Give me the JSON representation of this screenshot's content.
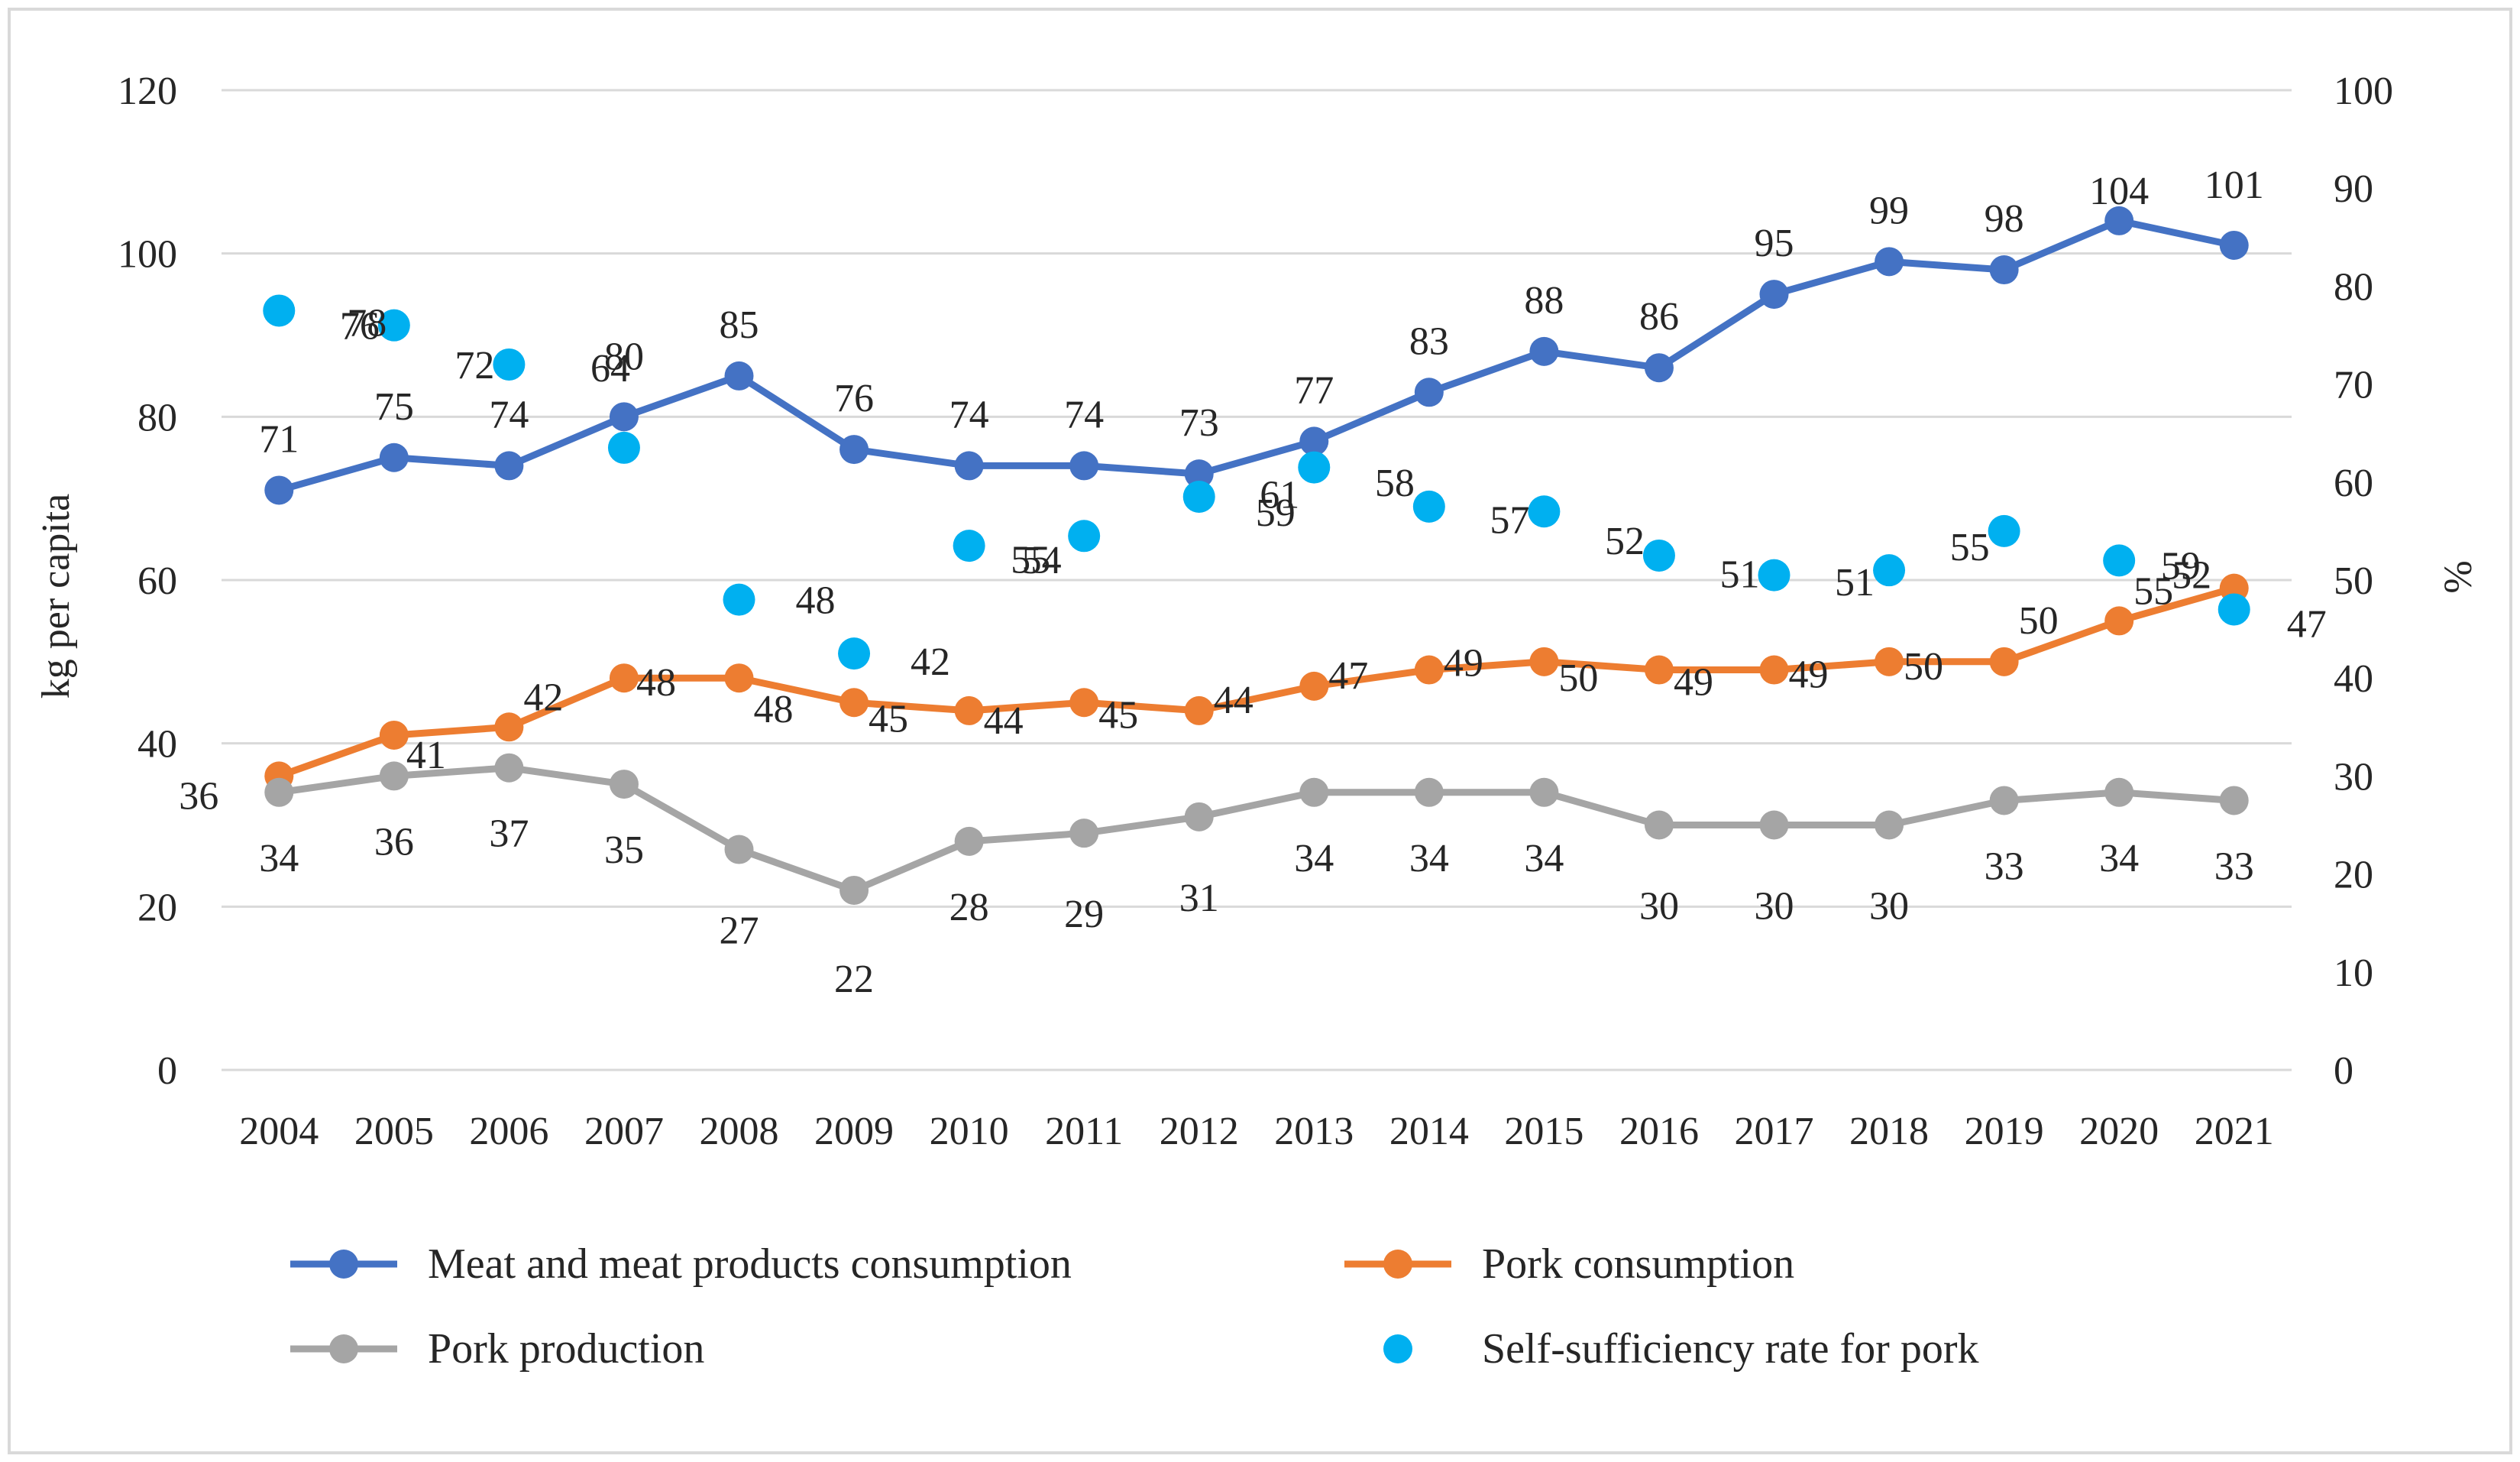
{
  "chart_data": {
    "type": "line",
    "title": "",
    "categories": [
      "2004",
      "2005",
      "2006",
      "2007",
      "2008",
      "2009",
      "2010",
      "2011",
      "2012",
      "2013",
      "2014",
      "2015",
      "2016",
      "2017",
      "2018",
      "2019",
      "2020",
      "2021"
    ],
    "y_left": {
      "label": "kg per capita",
      "min": 0,
      "max": 120,
      "ticks": [
        "0",
        "20",
        "40",
        "60",
        "80",
        "100",
        "120"
      ]
    },
    "y_right": {
      "label": "%",
      "min": 0,
      "max": 100,
      "ticks": [
        "0",
        "10",
        "20",
        "30",
        "40",
        "50",
        "60",
        "70",
        "80",
        "90",
        "100"
      ]
    },
    "grid": true,
    "legend_position": "bottom",
    "series": [
      {
        "name": "Meat and meat products consumption",
        "axis": "left",
        "style": "line-marker",
        "color": "#4472c4",
        "values": [
          71,
          75,
          74,
          80,
          85,
          76,
          74,
          74,
          73,
          77,
          83,
          88,
          86,
          95,
          99,
          98,
          104,
          101
        ],
        "labels": [
          "71",
          "75",
          "74",
          "80",
          "85",
          "76",
          "74",
          "74",
          "73",
          "77",
          "83",
          "88",
          "86",
          "95",
          "99",
          "98",
          "104",
          "101"
        ]
      },
      {
        "name": "Pork consumption",
        "axis": "left",
        "style": "line-marker",
        "color": "#ed7d31",
        "values": [
          36,
          41,
          42,
          48,
          48,
          45,
          44,
          45,
          44,
          47,
          49,
          50,
          49,
          49,
          50,
          50,
          55,
          59
        ],
        "labels": [
          "36",
          "41",
          "42",
          "48",
          "48",
          "45",
          "44",
          "45",
          "44",
          "47",
          "49",
          "50",
          "49",
          "49",
          "50",
          "50",
          "55",
          "59"
        ]
      },
      {
        "name": "Pork production",
        "axis": "left",
        "style": "line-marker",
        "color": "#a5a5a5",
        "values": [
          34,
          36,
          37,
          35,
          27,
          22,
          28,
          29,
          31,
          34,
          34,
          34,
          30,
          30,
          30,
          33,
          34,
          33
        ],
        "labels": [
          "34",
          "36",
          "37",
          "35",
          "27",
          "22",
          "28",
          "29",
          "31",
          "34",
          "34",
          "34",
          "30",
          "30",
          "30",
          "33",
          "34",
          "33"
        ]
      },
      {
        "name": "Self-sufficiency rate for pork",
        "axis": "right",
        "style": "marker",
        "color": "#00b0f0",
        "values": [
          77.5,
          76,
          72,
          63.5,
          48,
          42.5,
          53.5,
          54.5,
          58.5,
          61.5,
          57.5,
          57,
          52.5,
          50.5,
          51,
          55,
          52,
          47
        ],
        "labels": [
          "78",
          "76",
          "72",
          "64",
          "48",
          "42",
          "54",
          "55",
          "59",
          "61",
          "58",
          "57",
          "52",
          "51",
          "51",
          "55",
          "52",
          "47"
        ]
      }
    ]
  }
}
